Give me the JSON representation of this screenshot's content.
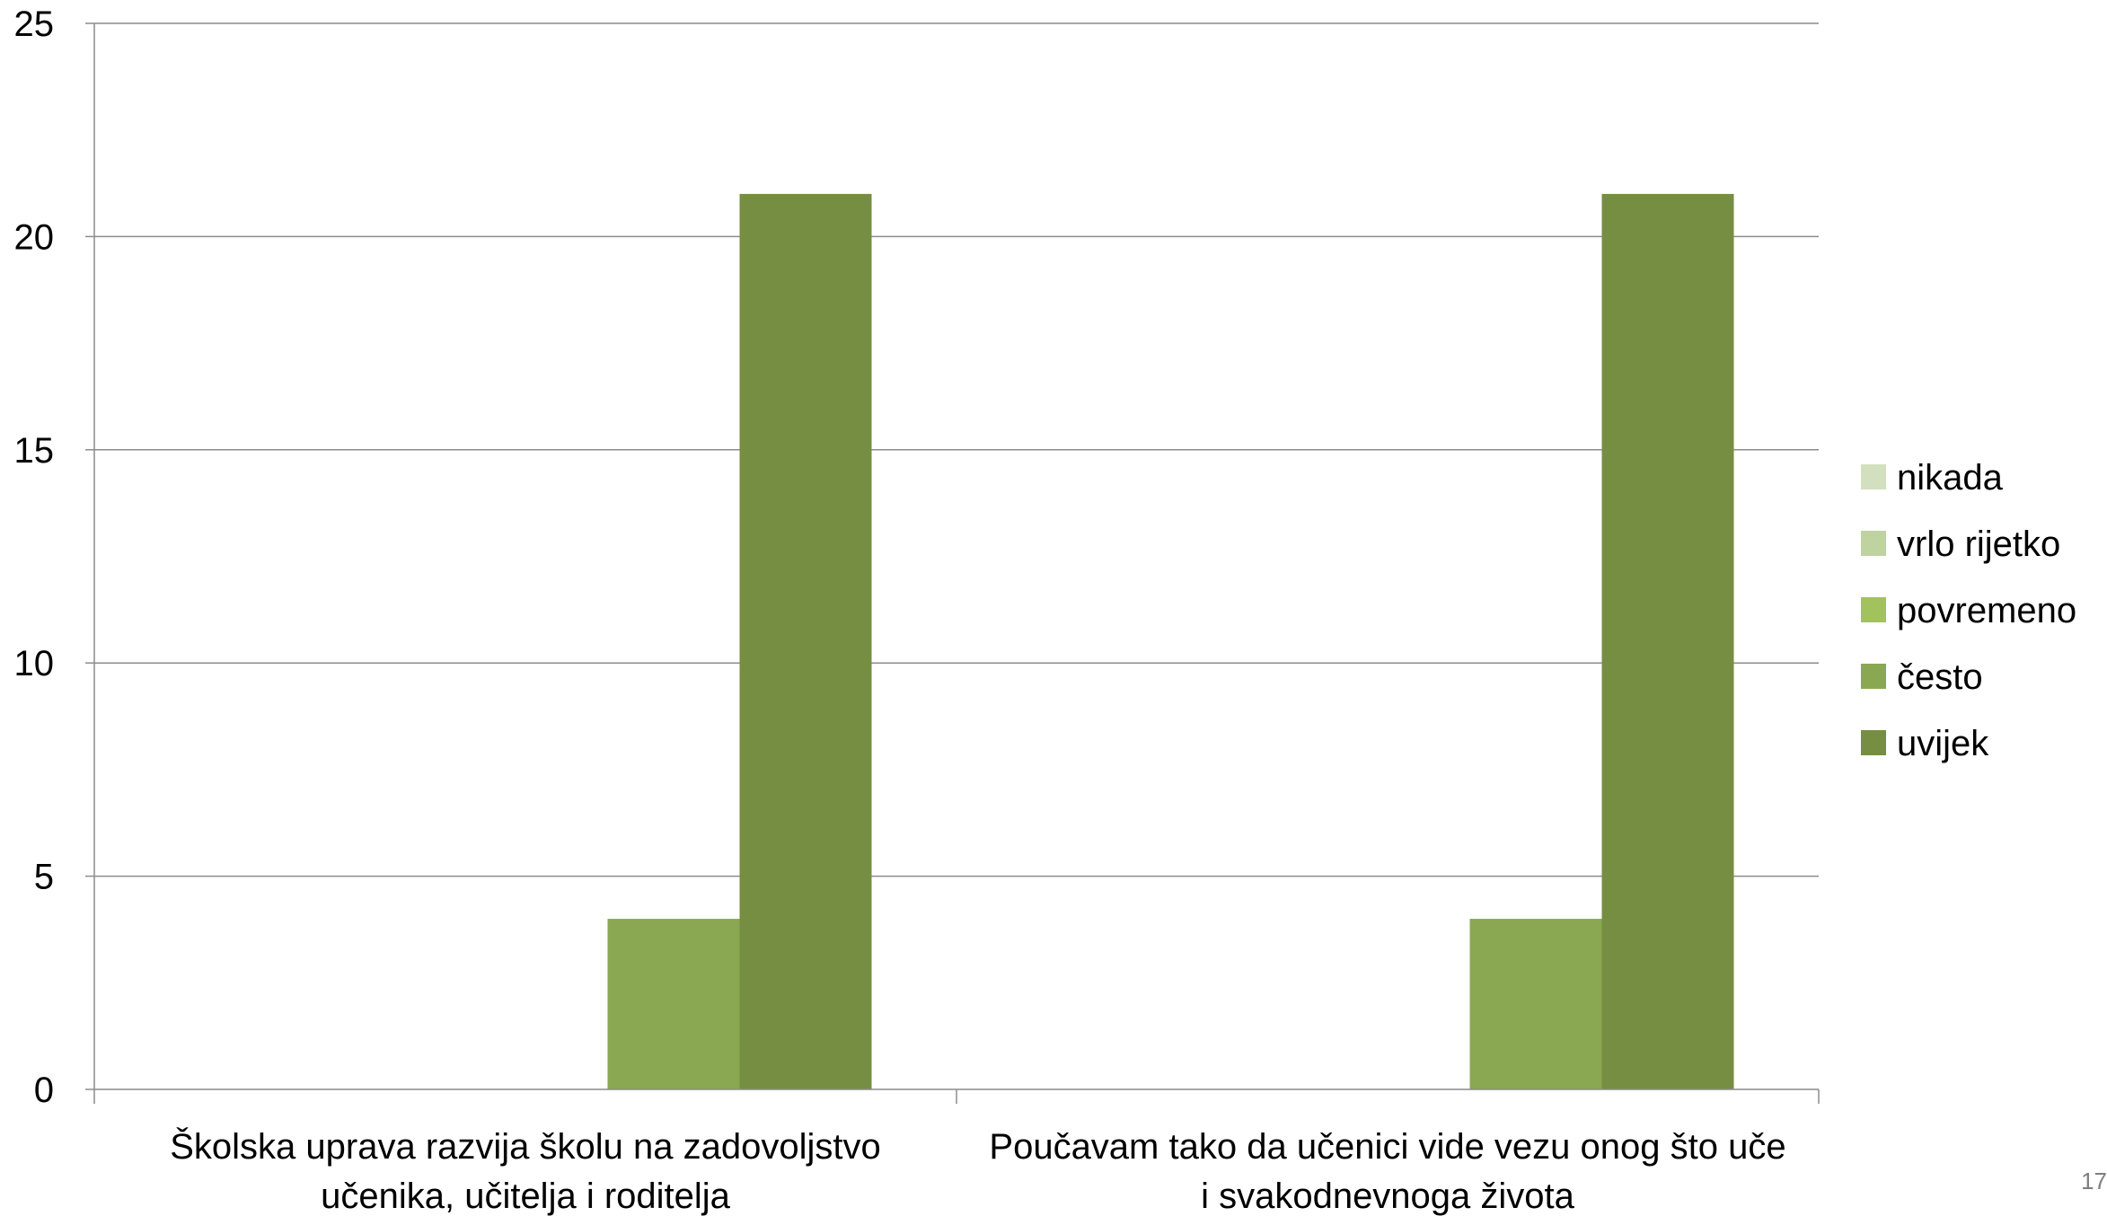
{
  "page_number": "17",
  "chart_data": {
    "type": "bar",
    "categories": [
      [
        "Školska uprava razvija školu na zadovoljstvo",
        "učenika, učitelja i roditelja"
      ],
      [
        "Poučavam tako da učenici vide vezu onog što uče",
        "i svakodnevnoga života"
      ]
    ],
    "series": [
      {
        "name": "nikada",
        "values": [
          0,
          0
        ],
        "color": "#d3e0c0"
      },
      {
        "name": "vrlo rijetko",
        "values": [
          0,
          0
        ],
        "color": "#bed3a0"
      },
      {
        "name": "povremeno",
        "values": [
          0,
          0
        ],
        "color": "#a2c25e"
      },
      {
        "name": "često",
        "values": [
          4,
          4
        ],
        "color": "#8aa851"
      },
      {
        "name": "uvijek",
        "values": [
          21,
          21
        ],
        "color": "#768e42"
      }
    ],
    "ylim": [
      0,
      25
    ],
    "yticks": [
      0,
      5,
      10,
      15,
      20,
      25
    ],
    "grid": true,
    "legend": "right"
  }
}
